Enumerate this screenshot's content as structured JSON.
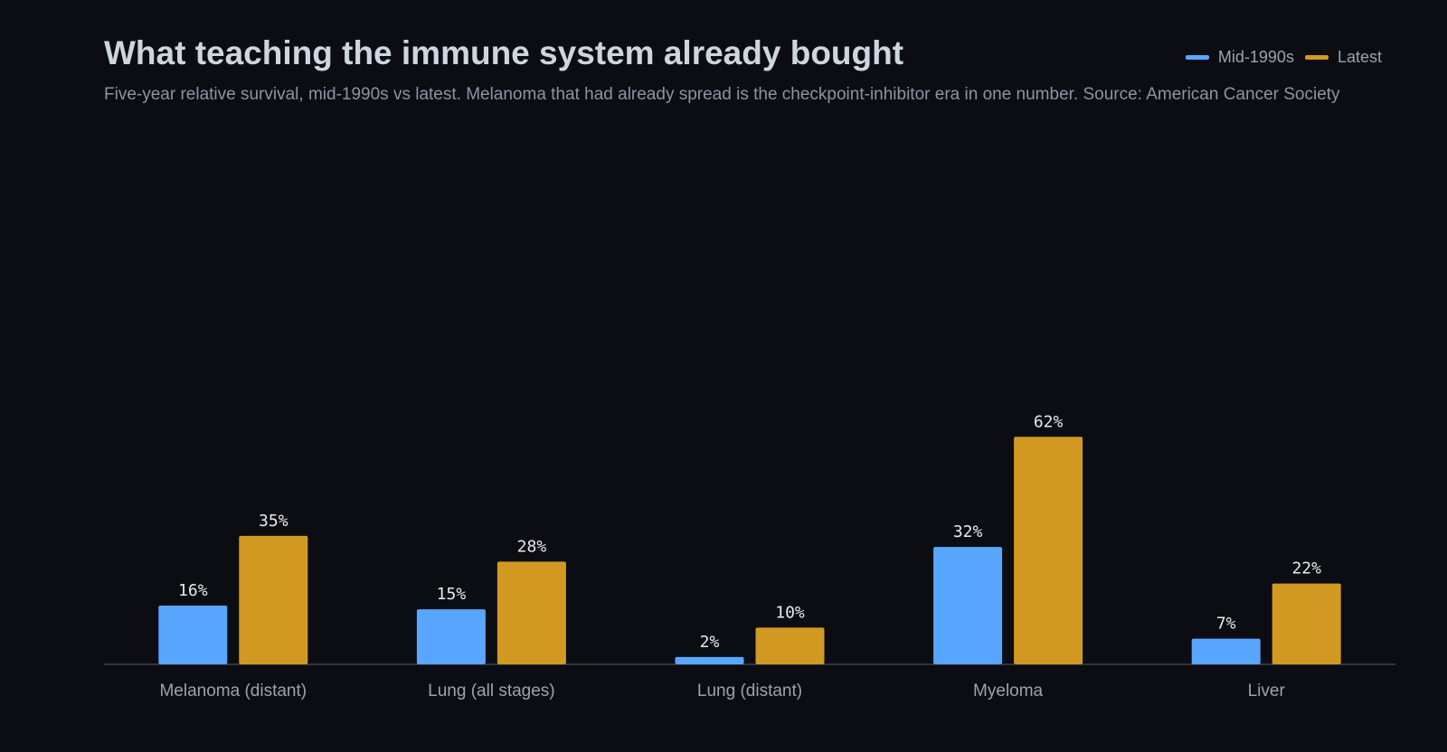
{
  "chart_data": {
    "type": "bar",
    "title": "What teaching the immune system already bought",
    "subtitle": "Five-year relative survival, mid-1990s vs latest. Melanoma that had already spread is the checkpoint-inhibitor era in one number. Source: American Cancer Society",
    "categories": [
      "Melanoma (distant)",
      "Lung (all stages)",
      "Lung (distant)",
      "Myeloma",
      "Liver"
    ],
    "series": [
      {
        "name": "Mid-1990s",
        "color": "#58a6ff",
        "values": [
          16,
          15,
          2,
          32,
          7
        ]
      },
      {
        "name": "Latest",
        "color": "#d29922",
        "values": [
          35,
          28,
          10,
          62,
          22
        ]
      }
    ],
    "value_suffix": "%",
    "ylim": [
      0,
      65
    ],
    "grid": false,
    "legend_position": "top-right",
    "xlabel": "",
    "ylabel": ""
  }
}
